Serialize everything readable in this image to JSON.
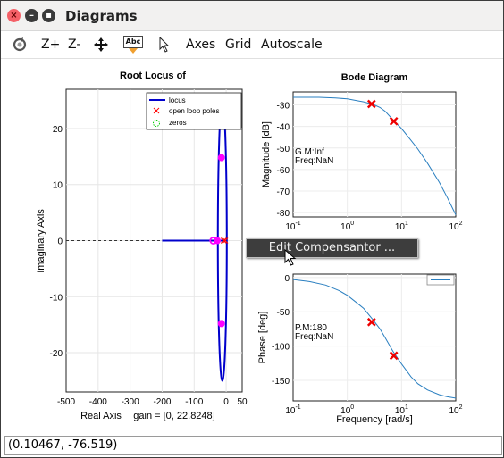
{
  "window": {
    "title": "Diagrams",
    "close_glyph": "×",
    "min_glyph": "–",
    "max_glyph": "▪"
  },
  "toolbar": {
    "zoom_in": "Z+",
    "zoom_out": "Z-",
    "text_icon_label": "Abc",
    "axes": "Axes",
    "grid": "Grid",
    "autoscale": "Autoscale"
  },
  "context_menu": {
    "item": "Edit Compensantor ..."
  },
  "status": {
    "coords": "(0.10467, -76.519)"
  },
  "colors": {
    "locus": "#0000cc",
    "poles": "#ff0000",
    "zeros": "#00cc00",
    "markers": "#ff00ff",
    "bode_line": "#2a7fc0",
    "bode_marker": "#ee0000"
  },
  "chart_data": [
    {
      "type": "line",
      "title": "Root Locus of",
      "xlabel": "Real Axis",
      "ylabel": "Imaginary Axis",
      "annotation": "gain = [0, 22.8248]",
      "xlim": [
        -500,
        50
      ],
      "ylim": [
        -27,
        27
      ],
      "xticks": [
        -500,
        -400,
        -300,
        -200,
        -100,
        0,
        50
      ],
      "yticks": [
        -20,
        -10,
        0,
        10,
        20
      ],
      "grid": true,
      "legend_position": "top-right",
      "legend": [
        "locus",
        "open loop poles",
        "zeros"
      ],
      "open_loop_poles": [
        [
          -3,
          0
        ],
        [
          -8,
          0
        ]
      ],
      "gain_markers": [
        [
          -15,
          14.8
        ],
        [
          -15,
          -14.8
        ],
        [
          -28,
          0
        ]
      ],
      "zeros_marker": [
        -40,
        0
      ],
      "locus": {
        "real_segment": [
          [
            -200,
            0
          ],
          [
            -8,
            0
          ]
        ],
        "asymptote_dashed": [
          [
            -500,
            0
          ],
          [
            -200,
            0
          ]
        ],
        "ellipse_center": [
          -12,
          0
        ],
        "ellipse_half_width": 14,
        "ellipse_half_height": 25
      }
    },
    {
      "type": "line",
      "title": "Bode Diagram",
      "xlabel": "",
      "ylabel": "Magnitude [dB]",
      "xscale": "log",
      "xlim": [
        0.1,
        100
      ],
      "ylim": [
        -82,
        -24
      ],
      "yticks": [
        -80,
        -70,
        -60,
        -50,
        -40,
        -30
      ],
      "xticks": [
        "10^-1",
        "10^0",
        "10^1",
        "10^2"
      ],
      "annotations": [
        "G.M:Inf",
        "Freq:NaN"
      ],
      "series": [
        {
          "x": [
            0.1,
            0.3,
            0.6,
            1,
            1.5,
            2,
            3,
            4,
            5,
            7,
            10,
            15,
            20,
            30,
            50,
            70,
            100
          ],
          "y": [
            -26.5,
            -26.5,
            -26.8,
            -27.2,
            -28,
            -28.6,
            -29.8,
            -31.2,
            -33,
            -37,
            -41,
            -46.5,
            -50.5,
            -57,
            -66,
            -73,
            -81
          ]
        }
      ],
      "markers": [
        [
          2.8,
          -29.6
        ],
        [
          7.2,
          -37.6
        ]
      ]
    },
    {
      "type": "line",
      "title": "",
      "xlabel": "Frequency [rad/s]",
      "ylabel": "Phase [deg]",
      "xscale": "log",
      "xlim": [
        0.1,
        100
      ],
      "ylim": [
        -180,
        5
      ],
      "yticks": [
        0,
        -50,
        -100,
        -150
      ],
      "xticks": [
        "10^-1",
        "10^0",
        "10^1",
        "10^2"
      ],
      "annotations": [
        "P.M:180",
        "Freq:NaN"
      ],
      "series": [
        {
          "x": [
            0.1,
            0.2,
            0.4,
            0.7,
            1,
            1.5,
            2,
            3,
            4,
            5,
            7,
            10,
            15,
            20,
            30,
            50,
            70,
            100
          ],
          "y": [
            -3,
            -6,
            -11,
            -19,
            -26,
            -37,
            -45,
            -62,
            -75,
            -88,
            -108,
            -126,
            -145,
            -155,
            -164,
            -171,
            -174,
            -176
          ]
        }
      ],
      "markers": [
        [
          2.8,
          -65
        ],
        [
          7.2,
          -114
        ]
      ]
    }
  ]
}
